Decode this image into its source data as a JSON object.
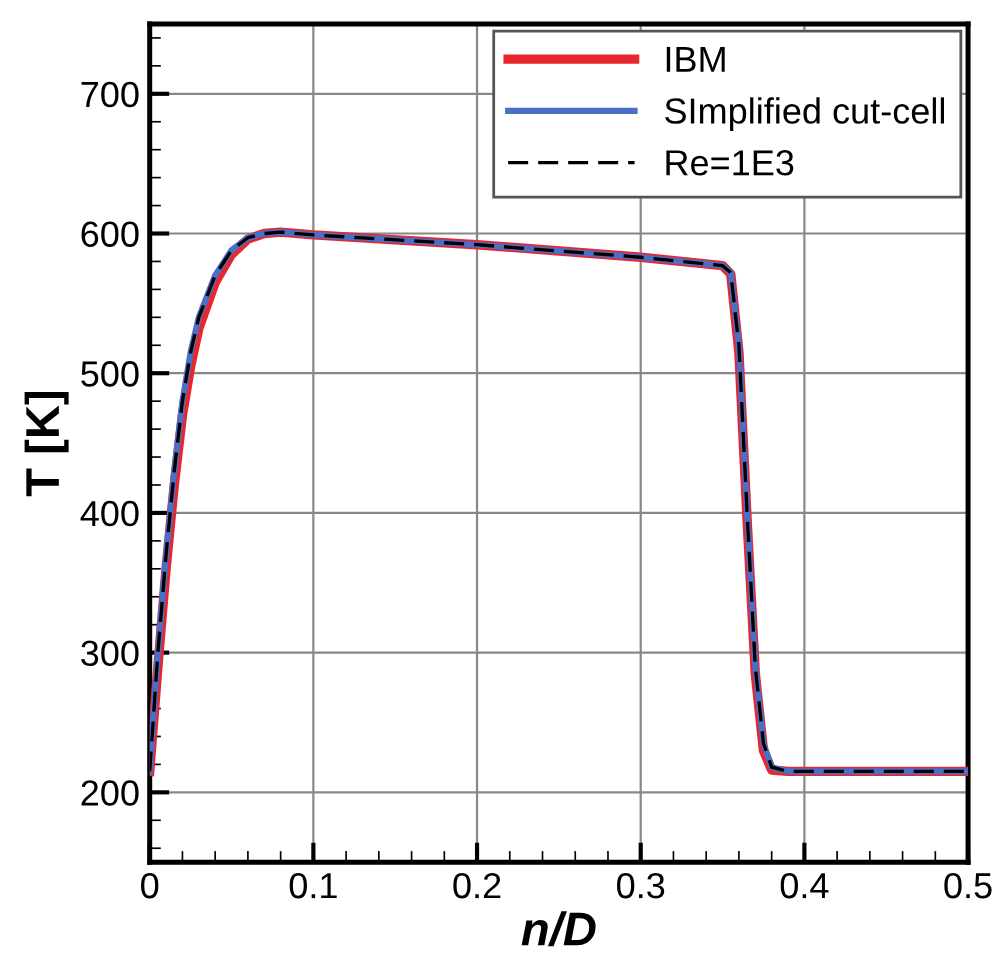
{
  "chart_data": {
    "type": "line",
    "xlabel": "n/D",
    "ylabel": "T [K]",
    "xlim": [
      0,
      0.5
    ],
    "xticks": [
      0,
      0.1,
      0.2,
      0.3,
      0.4,
      0.5
    ],
    "ylim": [
      150,
      750
    ],
    "yticks": [
      200,
      300,
      400,
      500,
      600,
      700
    ],
    "grid": true,
    "legend": "top right",
    "line_style": "solid",
    "marker": "none",
    "series": [
      {
        "name": "IBM",
        "color": "#e8262e",
        "x": [
          0,
          0.005,
          0.01,
          0.015,
          0.02,
          0.025,
          0.03,
          0.04,
          0.05,
          0.06,
          0.07,
          0.08,
          0.1,
          0.2,
          0.3,
          0.35,
          0.355,
          0.36,
          0.365,
          0.37,
          0.375,
          0.38,
          0.39,
          0.5
        ],
        "values": [
          215,
          290,
          360,
          420,
          470,
          505,
          532,
          565,
          585,
          596,
          600,
          601,
          599,
          592,
          583,
          577,
          571,
          515,
          395,
          285,
          230,
          216,
          215,
          215
        ]
      },
      {
        "name": "SImplified cut-cell",
        "color": "#4a6fc7",
        "x": [
          0,
          0.005,
          0.01,
          0.015,
          0.02,
          0.025,
          0.03,
          0.04,
          0.05,
          0.06,
          0.07,
          0.08,
          0.1,
          0.2,
          0.3,
          0.35,
          0.355,
          0.36,
          0.365,
          0.37,
          0.375,
          0.38,
          0.39,
          0.5
        ],
        "values": [
          215,
          300,
          370,
          430,
          480,
          515,
          540,
          570,
          588,
          597,
          600,
          601,
          599,
          592,
          583,
          577,
          572,
          520,
          400,
          290,
          235,
          218,
          215,
          215
        ]
      },
      {
        "name": "Re=1E3",
        "color": "#000000",
        "line_style": "dashed",
        "x": [
          0,
          0.005,
          0.01,
          0.015,
          0.02,
          0.025,
          0.03,
          0.04,
          0.05,
          0.06,
          0.07,
          0.08,
          0.1,
          0.2,
          0.3,
          0.35,
          0.355,
          0.36,
          0.365,
          0.37,
          0.375,
          0.38,
          0.39,
          0.5
        ],
        "values": [
          215,
          300,
          370,
          430,
          480,
          515,
          540,
          570,
          588,
          597,
          600,
          601,
          599,
          592,
          583,
          577,
          572,
          520,
          400,
          290,
          235,
          218,
          215,
          215
        ]
      }
    ]
  }
}
